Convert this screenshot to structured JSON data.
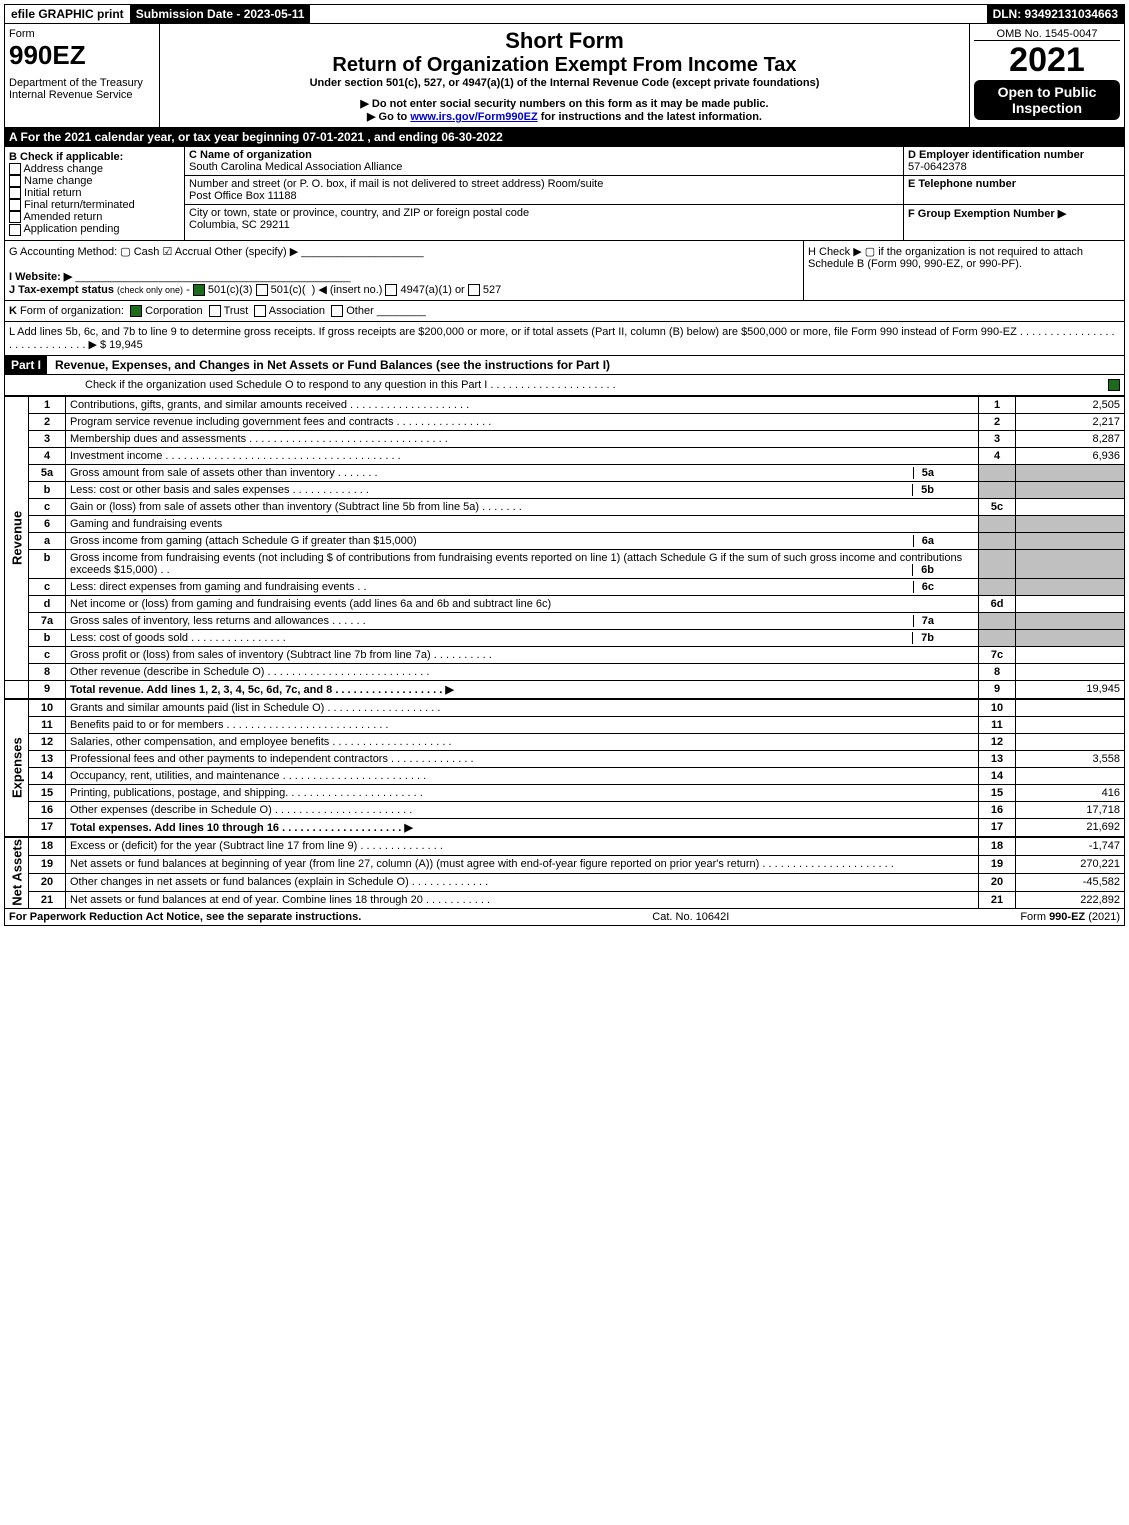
{
  "top": {
    "efile": "efile GRAPHIC print",
    "submission": "Submission Date - 2023-05-11",
    "dln": "DLN: 93492131034663"
  },
  "header": {
    "form_word": "Form",
    "form_num": "990EZ",
    "dept": "Department of the Treasury\nInternal Revenue Service",
    "short": "Short Form",
    "title": "Return of Organization Exempt From Income Tax",
    "under": "Under section 501(c), 527, or 4947(a)(1) of the Internal Revenue Code (except private foundations)",
    "no_ssn": "▶ Do not enter social security numbers on this form as it may be made public.",
    "goto_pre": "▶ Go to ",
    "goto_link": "www.irs.gov/Form990EZ",
    "goto_post": " for instructions and the latest information.",
    "omb": "OMB No. 1545-0047",
    "year": "2021",
    "open": "Open to Public Inspection"
  },
  "A": "A  For the 2021 calendar year, or tax year beginning 07-01-2021 , and ending 06-30-2022",
  "B": {
    "title": "B  Check if applicable:",
    "opts": [
      "Address change",
      "Name change",
      "Initial return",
      "Final return/terminated",
      "Amended return",
      "Application pending"
    ]
  },
  "C": {
    "label": "C Name of organization",
    "name": "South Carolina Medical Association Alliance",
    "street_lbl": "Number and street (or P. O. box, if mail is not delivered to street address)      Room/suite",
    "street": "Post Office Box 11188",
    "city_lbl": "City or town, state or province, country, and ZIP or foreign postal code",
    "city": "Columbia, SC  29211"
  },
  "D": {
    "label": "D Employer identification number",
    "val": "57-0642378"
  },
  "E": {
    "label": "E Telephone number",
    "val": ""
  },
  "F": {
    "label": "F Group Exemption Number  ▶",
    "val": ""
  },
  "G": "G Accounting Method:   ▢ Cash   ☑ Accrual   Other (specify) ▶",
  "H": "H  Check ▶  ▢  if the organization is not required to attach Schedule B (Form 990, 990-EZ, or 990-PF).",
  "I": "I Website: ▶",
  "J": "J Tax-exempt status (check only one) - ☑ 501(c)(3) ▢ 501(c)(  ) ◀ (insert no.) ▢ 4947(a)(1) or ▢ 527",
  "K": "K Form of organization:  ☑ Corporation  ▢ Trust  ▢ Association  ▢ Other",
  "L": {
    "text": "L Add lines 5b, 6c, and 7b to line 9 to determine gross receipts. If gross receipts are $200,000 or more, or if total assets (Part II, column (B) below) are $500,000 or more, file Form 990 instead of Form 990-EZ . . . . . . . . . . . . . . . . . . . . . . . . . . . . .  ▶ $",
    "val": " 19,945"
  },
  "part1": {
    "hdr": "Part I",
    "title": "Revenue, Expenses, and Changes in Net Assets or Fund Balances (see the instructions for Part I)",
    "check": "Check if the organization used Schedule O to respond to any question in this Part I . . . . . . . . . . . . . . . . . . . . .",
    "side_rev": "Revenue",
    "side_exp": "Expenses",
    "side_net": "Net Assets"
  },
  "lines": {
    "1": {
      "d": "Contributions, gifts, grants, and similar amounts received . . . . . . . . . . . . . . . . . . . .",
      "amt": "2,505"
    },
    "2": {
      "d": "Program service revenue including government fees and contracts . . . . . . . . . . . . . . . .",
      "amt": "2,217"
    },
    "3": {
      "d": "Membership dues and assessments . . . . . . . . . . . . . . . . . . . . . . . . . . . . . . . . .",
      "amt": "8,287"
    },
    "4": {
      "d": "Investment income . . . . . . . . . . . . . . . . . . . . . . . . . . . . . . . . . . . . . . .",
      "amt": "6,936"
    },
    "5a": {
      "d": "Gross amount from sale of assets other than inventory . . . . . . .",
      "ref": "5a"
    },
    "5b": {
      "d": "Less: cost or other basis and sales expenses . . . . . . . . . . . . .",
      "ref": "5b"
    },
    "5c": {
      "d": "Gain or (loss) from sale of assets other than inventory (Subtract line 5b from line 5a) . . . . . . .",
      "amt": ""
    },
    "6": {
      "d": "Gaming and fundraising events"
    },
    "6a": {
      "d": "Gross income from gaming (attach Schedule G if greater than $15,000)",
      "ref": "6a"
    },
    "6b": {
      "d": "Gross income from fundraising events (not including $                        of contributions from fundraising events reported on line 1) (attach Schedule G if the sum of such gross income and contributions exceeds $15,000)   . .",
      "ref": "6b"
    },
    "6c": {
      "d": "Less: direct expenses from gaming and fundraising events   . .",
      "ref": "6c"
    },
    "6d": {
      "d": "Net income or (loss) from gaming and fundraising events (add lines 6a and 6b and subtract line 6c)",
      "amt": ""
    },
    "7a": {
      "d": "Gross sales of inventory, less returns and allowances . . . . . .",
      "ref": "7a"
    },
    "7b": {
      "d": "Less: cost of goods sold      . . . . . . . . . . . . . . . .",
      "ref": "7b"
    },
    "7c": {
      "d": "Gross profit or (loss) from sales of inventory (Subtract line 7b from line 7a) . . . . . . . . . .",
      "amt": ""
    },
    "8": {
      "d": "Other revenue (describe in Schedule O) . . . . . . . . . . . . . . . . . . . . . . . . . . .",
      "amt": ""
    },
    "9": {
      "d": "Total revenue. Add lines 1, 2, 3, 4, 5c, 6d, 7c, and 8  . . . . . . . . . . . . . . . . . .  ▶",
      "amt": "19,945",
      "bold": true
    },
    "10": {
      "d": "Grants and similar amounts paid (list in Schedule O) . . . . . . . . . . . . . . . . . . .",
      "amt": ""
    },
    "11": {
      "d": "Benefits paid to or for members     . . . . . . . . . . . . . . . . . . . . . . . . . . .",
      "amt": ""
    },
    "12": {
      "d": "Salaries, other compensation, and employee benefits . . . . . . . . . . . . . . . . . . . .",
      "amt": ""
    },
    "13": {
      "d": "Professional fees and other payments to independent contractors . . . . . . . . . . . . . .",
      "amt": "3,558"
    },
    "14": {
      "d": "Occupancy, rent, utilities, and maintenance . . . . . . . . . . . . . . . . . . . . . . . .",
      "amt": ""
    },
    "15": {
      "d": "Printing, publications, postage, and shipping. . . . . . . . . . . . . . . . . . . . . . .",
      "amt": "416"
    },
    "16": {
      "d": "Other expenses (describe in Schedule O)     . . . . . . . . . . . . . . . . . . . . . . .",
      "amt": "17,718"
    },
    "17": {
      "d": "Total expenses. Add lines 10 through 16     . . . . . . . . . . . . . . . . . . . .  ▶",
      "amt": "21,692",
      "bold": true
    },
    "18": {
      "d": "Excess or (deficit) for the year (Subtract line 17 from line 9)        . . . . . . . . . . . . . .",
      "amt": "-1,747"
    },
    "19": {
      "d": "Net assets or fund balances at beginning of year (from line 27, column (A)) (must agree with end-of-year figure reported on prior year's return) . . . . . . . . . . . . . . . . . . . . . .",
      "amt": "270,221"
    },
    "20": {
      "d": "Other changes in net assets or fund balances (explain in Schedule O) . . . . . . . . . . . . .",
      "amt": "-45,582"
    },
    "21": {
      "d": "Net assets or fund balances at end of year. Combine lines 18 through 20 . . . . . . . . . . .",
      "amt": "222,892"
    }
  },
  "footer": {
    "left": "For Paperwork Reduction Act Notice, see the separate instructions.",
    "mid": "Cat. No. 10642I",
    "right_pre": "Form ",
    "right_form": "990-EZ",
    "right_post": " (2021)"
  }
}
